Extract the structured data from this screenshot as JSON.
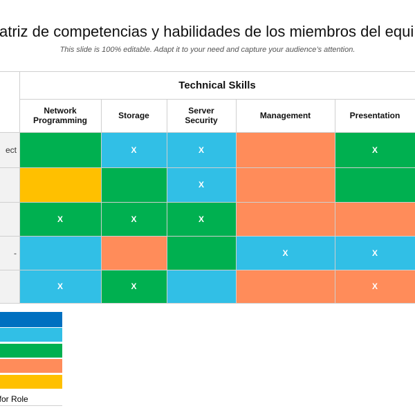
{
  "title": "atriz de competencias y habilidades de los miembros del equi",
  "subtitle": "This slide is 100% editable. Adapt it to your need and capture your audience’s attention.",
  "group_header": "Technical Skills",
  "columns": [
    "Network\nProgramming",
    "Storage",
    "Server\nSecurity",
    "Management",
    "Presentation"
  ],
  "row_labels": [
    "ect",
    "",
    "",
    "-",
    ""
  ],
  "mark_symbol": "X",
  "colors": {
    "green": "#00B050",
    "light_blue": "#31BFE6",
    "orange": "#FF8C5A",
    "yellow": "#FFC000",
    "dark_blue": "#0070C0",
    "row_label_bg": "#F2F2F2",
    "grid_line": "#CFCFCF"
  },
  "matrix": [
    [
      {
        "color": "green",
        "mark": false
      },
      {
        "color": "light_blue",
        "mark": true
      },
      {
        "color": "light_blue",
        "mark": true
      },
      {
        "color": "orange",
        "mark": false
      },
      {
        "color": "green",
        "mark": true
      }
    ],
    [
      {
        "color": "yellow",
        "mark": false
      },
      {
        "color": "green",
        "mark": false
      },
      {
        "color": "light_blue",
        "mark": true
      },
      {
        "color": "orange",
        "mark": false
      },
      {
        "color": "green",
        "mark": false
      }
    ],
    [
      {
        "color": "green",
        "mark": true
      },
      {
        "color": "green",
        "mark": true
      },
      {
        "color": "green",
        "mark": true
      },
      {
        "color": "orange",
        "mark": false
      },
      {
        "color": "orange",
        "mark": false
      }
    ],
    [
      {
        "color": "light_blue",
        "mark": false
      },
      {
        "color": "orange",
        "mark": false
      },
      {
        "color": "green",
        "mark": false
      },
      {
        "color": "light_blue",
        "mark": true
      },
      {
        "color": "light_blue",
        "mark": true
      }
    ],
    [
      {
        "color": "light_blue",
        "mark": true
      },
      {
        "color": "green",
        "mark": true
      },
      {
        "color": "light_blue",
        "mark": false
      },
      {
        "color": "orange",
        "mark": false
      },
      {
        "color": "orange",
        "mark": true
      }
    ]
  ],
  "legend": {
    "swatches": [
      "dark_blue",
      "light_blue",
      "green",
      "orange",
      "yellow"
    ],
    "last_label": "al for Role"
  }
}
